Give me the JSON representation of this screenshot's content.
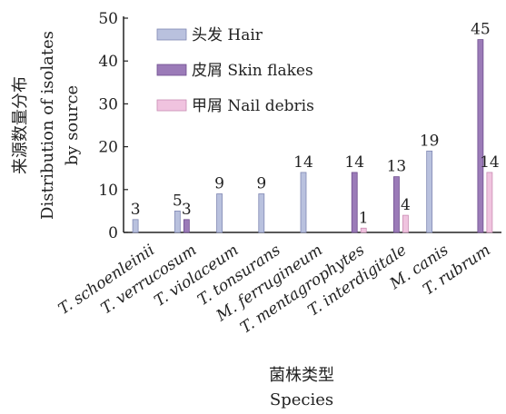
{
  "chart_data": {
    "type": "bar",
    "xlabel": [
      "菌株类型",
      "Species"
    ],
    "ylabel": [
      "来源数量分布",
      "Distribution of isolates",
      "by source"
    ],
    "ylim": [
      0,
      50
    ],
    "yticks": [
      0,
      10,
      20,
      30,
      40,
      50
    ],
    "categories": [
      "T. schoenleinii",
      "T. verrucosum",
      "T. violaceum",
      "T. tonsurans",
      "M. ferrugineum",
      "T. mentagrophytes",
      "T. interdigitale",
      "M. canis",
      "T. rubrum"
    ],
    "series": [
      {
        "name": "头发 Hair",
        "color": "#b9c1de",
        "stroke": "#8088b3",
        "values": [
          3,
          5,
          9,
          9,
          14,
          0,
          0,
          19,
          0
        ],
        "labels": [
          "3",
          "5",
          "9",
          "9",
          "14",
          "",
          "",
          "19",
          ""
        ]
      },
      {
        "name": "皮屑 Skin flakes",
        "color": "#9b7bb8",
        "stroke": "#6e4d8e",
        "values": [
          0,
          3,
          0,
          0,
          0,
          14,
          13,
          0,
          45
        ],
        "labels": [
          "",
          "3",
          "",
          "",
          "",
          "14",
          "13",
          "",
          "45"
        ]
      },
      {
        "name": "甲屑 Nail debris",
        "color": "#f0c3df",
        "stroke": "#c98db3",
        "values": [
          0,
          0,
          0,
          0,
          0,
          1,
          4,
          0,
          14
        ],
        "labels": [
          "",
          "",
          "",
          "",
          "",
          "1",
          "4",
          "",
          "14"
        ]
      }
    ],
    "grid": false,
    "legend_position": "top-left"
  }
}
